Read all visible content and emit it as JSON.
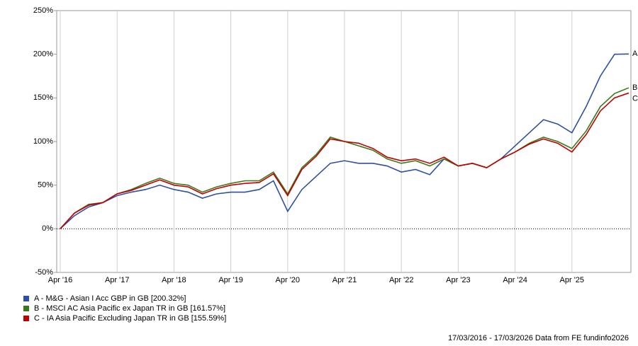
{
  "chart_data": {
    "type": "line",
    "categories": [
      "Apr '16",
      null,
      null,
      null,
      "Apr '17",
      null,
      null,
      null,
      "Apr '18",
      null,
      null,
      null,
      "Apr '19",
      null,
      null,
      null,
      "Apr '20",
      null,
      null,
      null,
      "Apr '21",
      null,
      null,
      null,
      "Apr '22",
      null,
      null,
      null,
      "Apr '23",
      null,
      null,
      null,
      "Apr '24",
      null,
      null,
      null,
      "Apr '25",
      null,
      null,
      null,
      null
    ],
    "series": [
      {
        "name": "A - M&G - Asian I Acc GBP in GB [200.32%]",
        "end_label": "A",
        "color": "#2f4fa3",
        "values": [
          0,
          15,
          25,
          30,
          38,
          42,
          45,
          50,
          45,
          42,
          35,
          40,
          42,
          42,
          45,
          55,
          20,
          45,
          60,
          75,
          78,
          75,
          75,
          72,
          65,
          68,
          62,
          80,
          72,
          75,
          70,
          80,
          95,
          110,
          125,
          120,
          110,
          140,
          175,
          200,
          200.32
        ]
      },
      {
        "name": "B - MSCI AC Asia Pacific ex Japan TR in GB [161.57%]",
        "end_label": "B",
        "color": "#3a7a1e",
        "values": [
          0,
          18,
          28,
          30,
          40,
          45,
          52,
          58,
          52,
          50,
          42,
          48,
          52,
          55,
          55,
          65,
          40,
          70,
          85,
          105,
          100,
          95,
          90,
          80,
          75,
          78,
          72,
          80,
          72,
          75,
          70,
          80,
          88,
          98,
          105,
          100,
          92,
          112,
          140,
          155,
          161.57
        ]
      },
      {
        "name": "C - IA Asia Pacific Excluding Japan TR in GB [155.59%]",
        "end_label": "C",
        "color": "#c00000",
        "values": [
          0,
          18,
          27,
          30,
          40,
          44,
          50,
          56,
          50,
          48,
          40,
          46,
          50,
          52,
          53,
          63,
          38,
          68,
          83,
          103,
          100,
          98,
          92,
          82,
          78,
          80,
          75,
          82,
          72,
          75,
          70,
          80,
          88,
          97,
          103,
          98,
          88,
          108,
          135,
          150,
          155.59
        ]
      }
    ],
    "ylim": [
      -50,
      250
    ],
    "yticks": [
      {
        "value": -50,
        "label": "-50%"
      },
      {
        "value": 0,
        "label": "0%"
      },
      {
        "value": 50,
        "label": "50%"
      },
      {
        "value": 100,
        "label": "100%"
      },
      {
        "value": 150,
        "label": "150%"
      },
      {
        "value": 200,
        "label": "200%"
      },
      {
        "value": 250,
        "label": "250%"
      }
    ],
    "grid": true,
    "footer": "17/03/2016 - 17/03/2026 Data from FE fundinfo2026"
  }
}
